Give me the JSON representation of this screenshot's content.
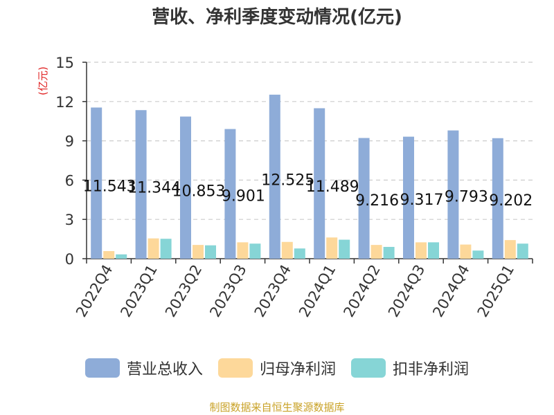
{
  "chart_data": {
    "type": "bar",
    "title": "营收、净利季度变动情况(亿元)",
    "ylabel": "(亿元)",
    "ylim": [
      0,
      15
    ],
    "yticks": [
      "0",
      "3",
      "6",
      "9",
      "12",
      "15"
    ],
    "grid": true,
    "legend_position": "bottom",
    "categories": [
      "2022Q4",
      "2023Q1",
      "2023Q2",
      "2023Q3",
      "2023Q4",
      "2024Q1",
      "2024Q2",
      "2024Q3",
      "2024Q4",
      "2025Q1"
    ],
    "series": [
      {
        "name": "营业总收入",
        "color": "#8eacd8",
        "values": [
          11.543,
          11.344,
          10.853,
          9.901,
          12.525,
          11.489,
          9.216,
          9.317,
          9.793,
          9.202
        ],
        "data_labels": [
          "11.543",
          "11.344",
          "10.853",
          "9.901",
          "12.525",
          "11.489",
          "9.216",
          "9.317",
          "9.793",
          "9.202"
        ]
      },
      {
        "name": "归母净利润",
        "color": "#fdd89a",
        "values": [
          0.58,
          1.55,
          1.05,
          1.25,
          1.28,
          1.62,
          1.05,
          1.25,
          1.08,
          1.42
        ]
      },
      {
        "name": "扣非净利润",
        "color": "#86d5d6",
        "values": [
          0.33,
          1.52,
          1.02,
          1.15,
          0.78,
          1.45,
          0.9,
          1.25,
          0.62,
          1.15
        ]
      }
    ]
  },
  "footer": {
    "source": "制图数据来自恒生聚源数据库"
  },
  "colors": {
    "ylabel": "#e02020",
    "axis": "#333333",
    "grid": "#cccccc"
  }
}
